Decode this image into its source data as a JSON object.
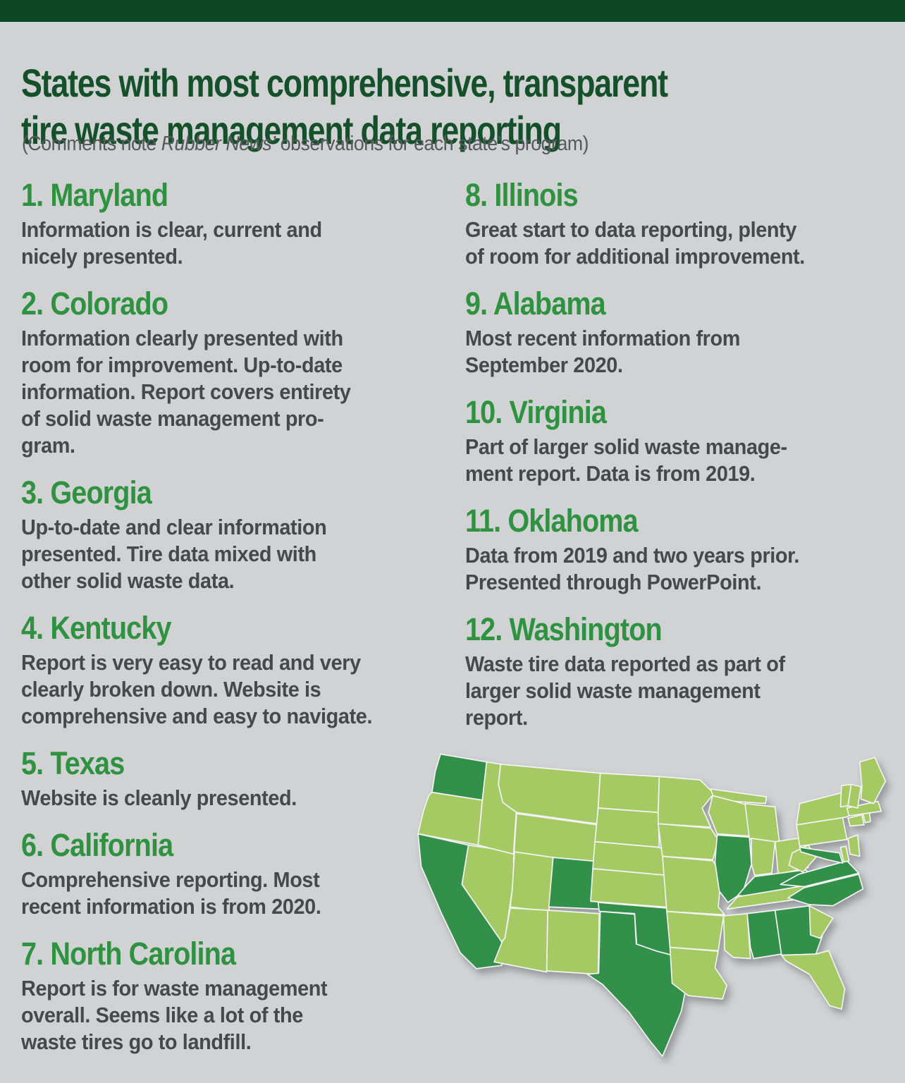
{
  "page": {
    "background_color": "#d1d2d4",
    "top_bar_color": "#0c4624"
  },
  "header": {
    "title": "States with most comprehensive, transparent\ntire waste management data reporting",
    "title_color": "#14512a",
    "subtitle_prefix": "(Comments note ",
    "subtitle_source": "Rubber News’",
    "subtitle_suffix": " observations for each state’s program)"
  },
  "list": {
    "heading_color": "#2f9241",
    "body_color": "#47484c",
    "items": [
      {
        "label": "1. Maryland",
        "name": "Maryland",
        "comment": "Information is clear, current and\nnicely presented."
      },
      {
        "label": "2. Colorado",
        "name": "Colorado",
        "comment": "Information clearly presented with\nroom for improvement. Up-to-date\ninformation. Report covers entirety\nof solid waste management pro-\ngram."
      },
      {
        "label": "3. Georgia",
        "name": "Georgia",
        "comment": "Up-to-date and clear information\npresented. Tire data mixed with\nother solid waste data."
      },
      {
        "label": "4. Kentucky",
        "name": "Kentucky",
        "comment": "Report is very easy to read and very\nclearly broken down. Website is\ncomprehensive and easy to navigate."
      },
      {
        "label": "5. Texas",
        "name": "Texas",
        "comment": "Website is cleanly presented."
      },
      {
        "label": "6. California",
        "name": "California",
        "comment": "Comprehensive reporting. Most\nrecent information is from 2020."
      },
      {
        "label": "7. North Carolina",
        "name": "North Carolina",
        "comment": "Report is for waste management\noverall. Seems like a lot of the\nwaste tires go to landfill."
      },
      {
        "label": "8. Illinois",
        "name": "Illinois",
        "comment": "Great start to data reporting, plenty\nof room for additional improvement."
      },
      {
        "label": "9. Alabama",
        "name": "Alabama",
        "comment": "Most recent information from\nSeptember 2020."
      },
      {
        "label": "10. Virginia",
        "name": "Virginia",
        "comment": "Part of larger solid waste manage-\nment report. Data is from 2019."
      },
      {
        "label": "11. Oklahoma",
        "name": "Oklahoma",
        "comment": "Data from 2019 and two years prior.\nPresented through PowerPoint."
      },
      {
        "label": "12. Washington",
        "name": "Washington",
        "comment": "Waste tire data reported as part of\nlarger solid waste management\nreport."
      }
    ]
  },
  "map": {
    "description": "US map, listed states shaded dark green",
    "highlighted_states": [
      "Maryland",
      "Colorado",
      "Georgia",
      "Kentucky",
      "Texas",
      "California",
      "North Carolina",
      "Illinois",
      "Alabama",
      "Virginia",
      "Oklahoma",
      "Washington"
    ],
    "highlight_color": "#33904b",
    "base_color": "#a5c963",
    "border_color": "#f2f3f2"
  }
}
